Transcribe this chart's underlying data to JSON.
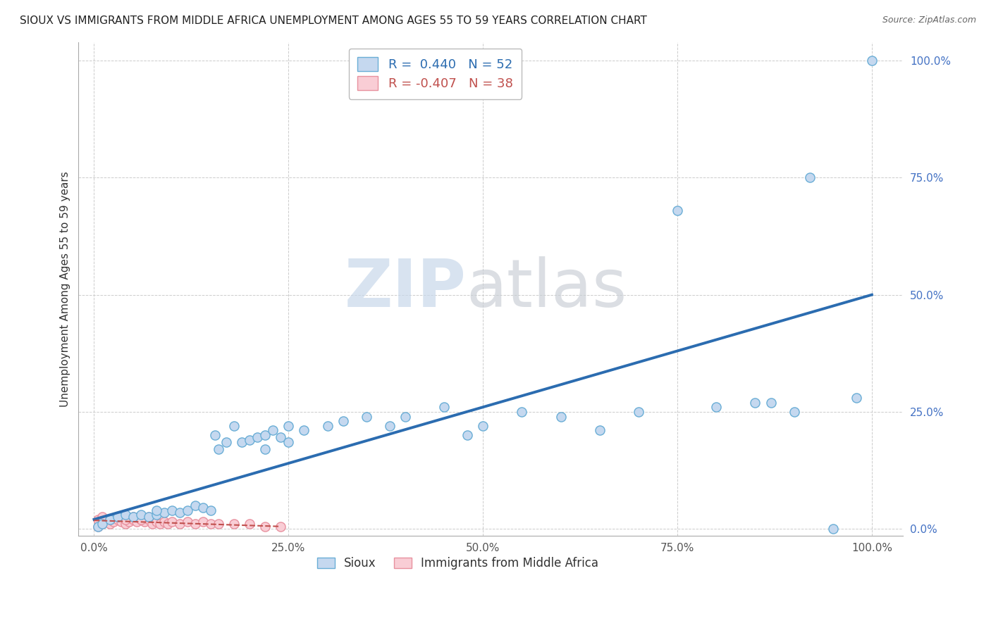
{
  "title": "SIOUX VS IMMIGRANTS FROM MIDDLE AFRICA UNEMPLOYMENT AMONG AGES 55 TO 59 YEARS CORRELATION CHART",
  "source": "Source: ZipAtlas.com",
  "ylabel": "Unemployment Among Ages 55 to 59 years",
  "watermark_left": "ZIP",
  "watermark_right": "atlas",
  "xlim": [
    -0.02,
    1.04
  ],
  "ylim": [
    -0.015,
    1.04
  ],
  "xticks": [
    0.0,
    0.25,
    0.5,
    0.75,
    1.0
  ],
  "xtick_labels": [
    "0.0%",
    "25.0%",
    "50.0%",
    "75.0%",
    "100.0%"
  ],
  "yticks": [
    0.0,
    0.25,
    0.5,
    0.75,
    1.0
  ],
  "ytick_labels": [
    "0.0%",
    "25.0%",
    "50.0%",
    "75.0%",
    "100.0%"
  ],
  "sioux_color": "#c5d8ef",
  "sioux_edge_color": "#6aaed6",
  "immigrants_color": "#f9cdd5",
  "immigrants_edge_color": "#e8919f",
  "trend_sioux_color": "#2b6cb0",
  "trend_immigrants_color": "#c0504d",
  "R_sioux": 0.44,
  "N_sioux": 52,
  "R_immigrants": -0.407,
  "N_immigrants": 38,
  "sioux_x": [
    0.005,
    0.01,
    0.02,
    0.03,
    0.04,
    0.05,
    0.06,
    0.07,
    0.08,
    0.09,
    0.1,
    0.11,
    0.12,
    0.13,
    0.14,
    0.15,
    0.155,
    0.16,
    0.17,
    0.18,
    0.19,
    0.2,
    0.21,
    0.22,
    0.23,
    0.24,
    0.25,
    0.27,
    0.3,
    0.32,
    0.35,
    0.38,
    0.4,
    0.45,
    0.48,
    0.5,
    0.55,
    0.6,
    0.65,
    0.7,
    0.75,
    0.8,
    0.85,
    0.87,
    0.9,
    0.92,
    0.95,
    0.98,
    1.0,
    0.08,
    0.22,
    0.25
  ],
  "sioux_y": [
    0.005,
    0.01,
    0.02,
    0.025,
    0.03,
    0.025,
    0.03,
    0.025,
    0.03,
    0.035,
    0.04,
    0.035,
    0.04,
    0.05,
    0.045,
    0.04,
    0.2,
    0.17,
    0.185,
    0.22,
    0.185,
    0.19,
    0.195,
    0.2,
    0.21,
    0.195,
    0.22,
    0.21,
    0.22,
    0.23,
    0.24,
    0.22,
    0.24,
    0.26,
    0.2,
    0.22,
    0.25,
    0.24,
    0.21,
    0.25,
    0.68,
    0.26,
    0.27,
    0.27,
    0.25,
    0.75,
    0.0,
    0.28,
    1.0,
    0.04,
    0.17,
    0.185
  ],
  "immigrants_x": [
    0.005,
    0.01,
    0.015,
    0.02,
    0.025,
    0.03,
    0.035,
    0.04,
    0.045,
    0.05,
    0.055,
    0.06,
    0.065,
    0.07,
    0.075,
    0.08,
    0.085,
    0.09,
    0.095,
    0.1,
    0.11,
    0.12,
    0.13,
    0.14,
    0.15,
    0.16,
    0.18,
    0.2,
    0.22,
    0.24,
    0.005,
    0.01,
    0.02,
    0.03,
    0.04,
    0.05,
    0.06,
    0.07
  ],
  "immigrants_y": [
    0.005,
    0.01,
    0.015,
    0.01,
    0.015,
    0.02,
    0.015,
    0.01,
    0.015,
    0.02,
    0.015,
    0.02,
    0.015,
    0.02,
    0.01,
    0.015,
    0.01,
    0.015,
    0.01,
    0.015,
    0.01,
    0.015,
    0.01,
    0.015,
    0.01,
    0.01,
    0.01,
    0.01,
    0.005,
    0.005,
    0.02,
    0.025,
    0.02,
    0.025,
    0.02,
    0.025,
    0.02,
    0.025
  ],
  "background_color": "#ffffff",
  "grid_color": "#cccccc",
  "marker_size": 90,
  "marker_linewidth": 1.0
}
